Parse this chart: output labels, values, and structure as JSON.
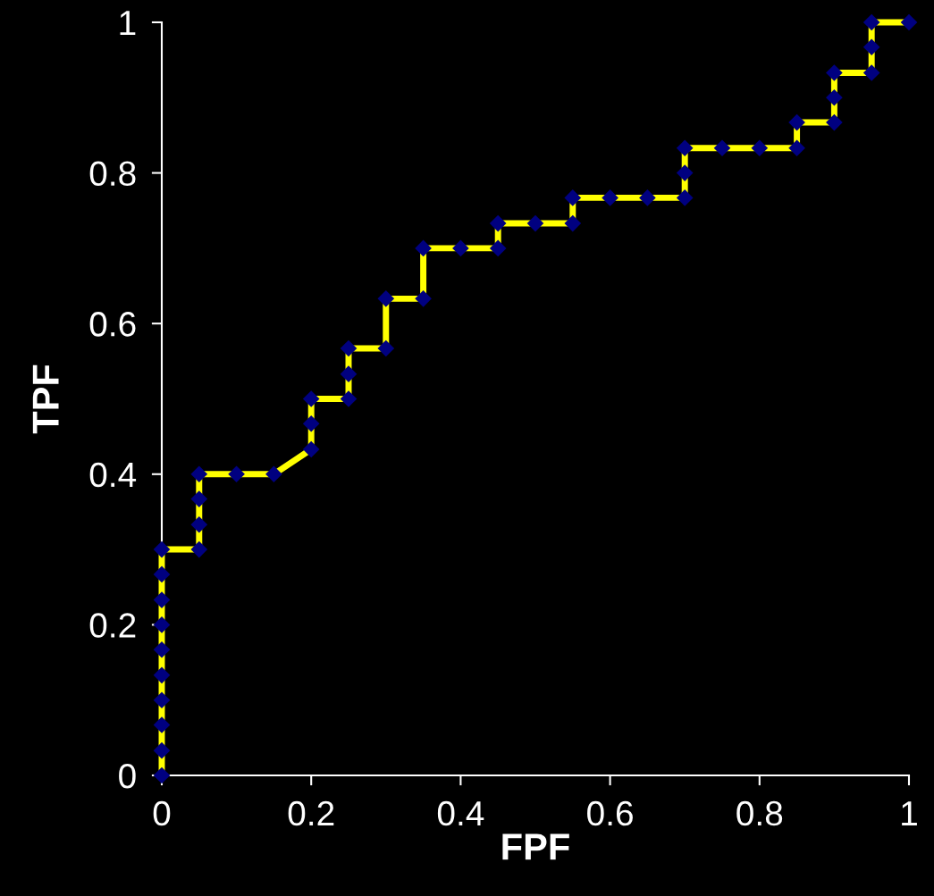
{
  "chart_data": {
    "type": "line",
    "xlabel": "FPF",
    "ylabel": "TPF",
    "x": [
      0,
      0,
      0,
      0,
      0,
      0,
      0,
      0,
      0,
      0,
      0.05,
      0.05,
      0.05,
      0.05,
      0.1,
      0.15,
      0.2,
      0.2,
      0.2,
      0.25,
      0.25,
      0.25,
      0.3,
      0.3,
      0.35,
      0.35,
      0.4,
      0.45,
      0.45,
      0.5,
      0.55,
      0.55,
      0.6,
      0.65,
      0.7,
      0.7,
      0.7,
      0.75,
      0.8,
      0.85,
      0.85,
      0.9,
      0.9,
      0.9,
      0.95,
      0.95,
      0.95,
      1
    ],
    "series": [
      {
        "color": "#ffff00",
        "colors": [
          "#000080",
          "#000080",
          "#000080",
          "#000080",
          "#000080",
          "#000080",
          "#000080",
          "#000080",
          "#000080",
          "#000080",
          "#000080",
          "#000080",
          "#000080",
          "#000080",
          "#000080",
          "#000080",
          "#000080",
          "#000080",
          "#000080",
          "#000080",
          "#000080",
          "#000080",
          "#000080",
          "#000080",
          "#000080",
          "#000080",
          "#000080",
          "#000080",
          "#000080",
          "#000080",
          "#000080",
          "#000080",
          "#000080",
          "#000080",
          "#000080",
          "#000080",
          "#000080",
          "#000080",
          "#000080",
          "#000080",
          "#000080",
          "#000080",
          "#000080",
          "#000080",
          "#000080",
          "#000080",
          "#000080",
          "#000080"
        ],
        "values": [
          0,
          0.033,
          0.067,
          0.1,
          0.133,
          0.167,
          0.2,
          0.233,
          0.267,
          0.3,
          0.3,
          0.333,
          0.367,
          0.4,
          0.4,
          0.4,
          0.433,
          0.467,
          0.5,
          0.5,
          0.533,
          0.567,
          0.567,
          0.633,
          0.633,
          0.7,
          0.7,
          0.7,
          0.733,
          0.733,
          0.733,
          0.767,
          0.767,
          0.767,
          0.767,
          0.8,
          0.833,
          0.833,
          0.833,
          0.833,
          0.867,
          0.867,
          0.9,
          0.933,
          0.933,
          0.967,
          1,
          1
        ]
      }
    ],
    "xlim": [
      0,
      1
    ],
    "ylim": [
      0,
      1
    ],
    "xticks": [
      0,
      0.2,
      0.4,
      0.6,
      0.8,
      1
    ],
    "yticks": [
      0,
      0.2,
      0.4,
      0.6,
      0.8,
      1
    ],
    "grid": false,
    "legend": false,
    "marker": "diamond",
    "line_style": "solid"
  }
}
